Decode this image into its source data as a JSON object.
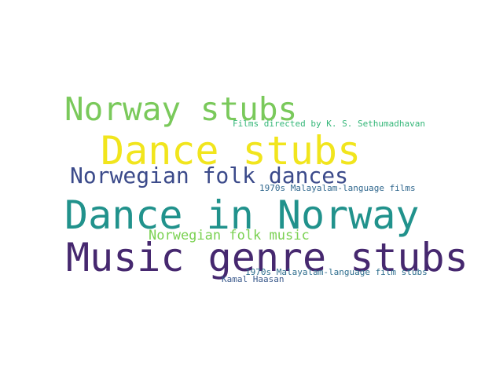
{
  "words": [
    {
      "text": "Norway stubs",
      "color": "#7ac95b"
    },
    {
      "text": "Films directed by K. S. Sethumadhavan",
      "color": "#35b779"
    },
    {
      "text": "Dance stubs",
      "color": "#f1e51d"
    },
    {
      "text": "Norwegian folk dances",
      "color": "#3b4a8a"
    },
    {
      "text": "1970s Malayalam-language films",
      "color": "#31688e"
    },
    {
      "text": "Dance in Norway",
      "color": "#21928c"
    },
    {
      "text": "Norwegian folk music",
      "color": "#7ad151"
    },
    {
      "text": "Music genre stubs",
      "color": "#46286f"
    },
    {
      "text": "1970s Malayalam-language film stubs",
      "color": "#2e6e8e"
    },
    {
      "text": "Kamal Haasan",
      "color": "#3b5a8c"
    }
  ]
}
